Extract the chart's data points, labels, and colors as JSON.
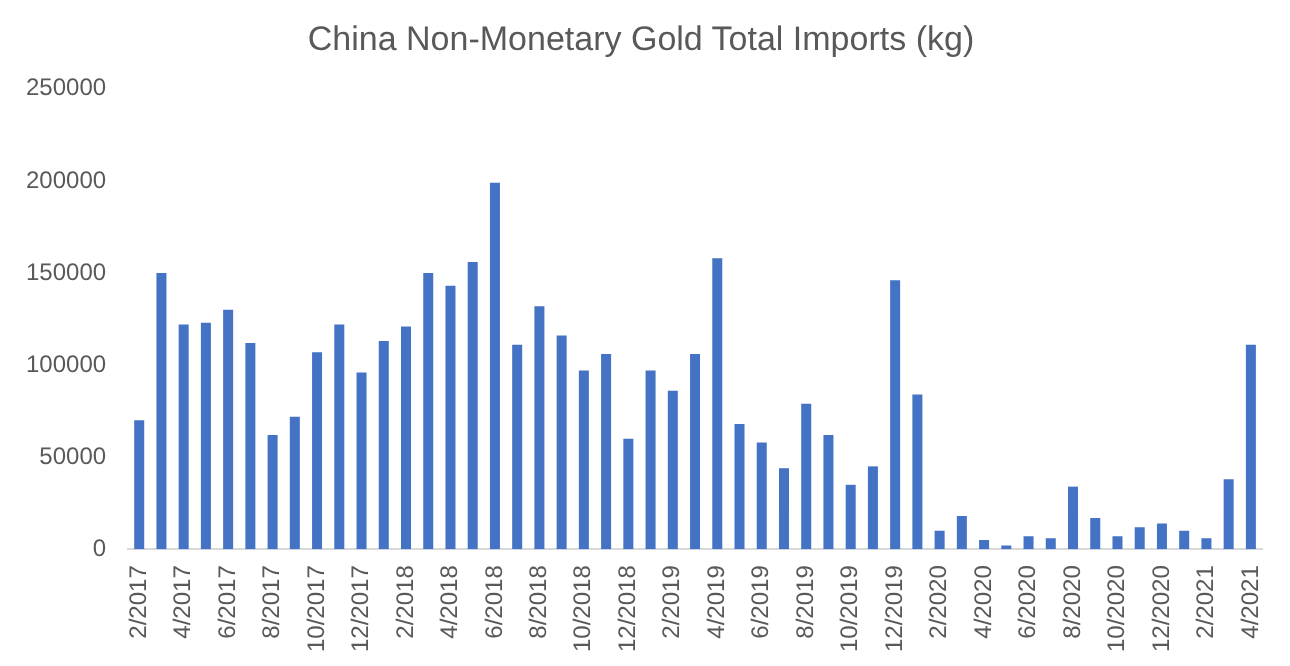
{
  "chart_data": {
    "type": "bar",
    "title": "China Non-Monetary Gold Total Imports (kg)",
    "categories": [
      "2/2017",
      null,
      "4/2017",
      null,
      "6/2017",
      null,
      "8/2017",
      null,
      "10/2017",
      null,
      "12/2017",
      null,
      "2/2018",
      null,
      "4/2018",
      null,
      "6/2018",
      null,
      "8/2018",
      null,
      "10/2018",
      null,
      "12/2018",
      null,
      "2/2019",
      null,
      "4/2019",
      null,
      "6/2019",
      null,
      "8/2019",
      null,
      "10/2019",
      null,
      "12/2019",
      null,
      "2/2020",
      null,
      "4/2020",
      null,
      "6/2020",
      null,
      "8/2020",
      null,
      "10/2020",
      null,
      "12/2020",
      null,
      "2/2021",
      null,
      "4/2021"
    ],
    "values": [
      70000,
      150000,
      122000,
      123000,
      130000,
      112000,
      62000,
      72000,
      107000,
      122000,
      96000,
      113000,
      121000,
      150000,
      143000,
      156000,
      199000,
      111000,
      132000,
      116000,
      97000,
      106000,
      60000,
      97000,
      86000,
      106000,
      158000,
      68000,
      58000,
      44000,
      79000,
      62000,
      35000,
      45000,
      146000,
      84000,
      10000,
      18000,
      5000,
      2000,
      7000,
      6000,
      34000,
      17000,
      7000,
      12000,
      14000,
      10000,
      6000,
      38000,
      111000
    ],
    "color": "#4472c4",
    "ylim": [
      0,
      250000
    ],
    "yticks": [
      0,
      50000,
      100000,
      150000,
      200000,
      250000
    ],
    "grid": false
  }
}
